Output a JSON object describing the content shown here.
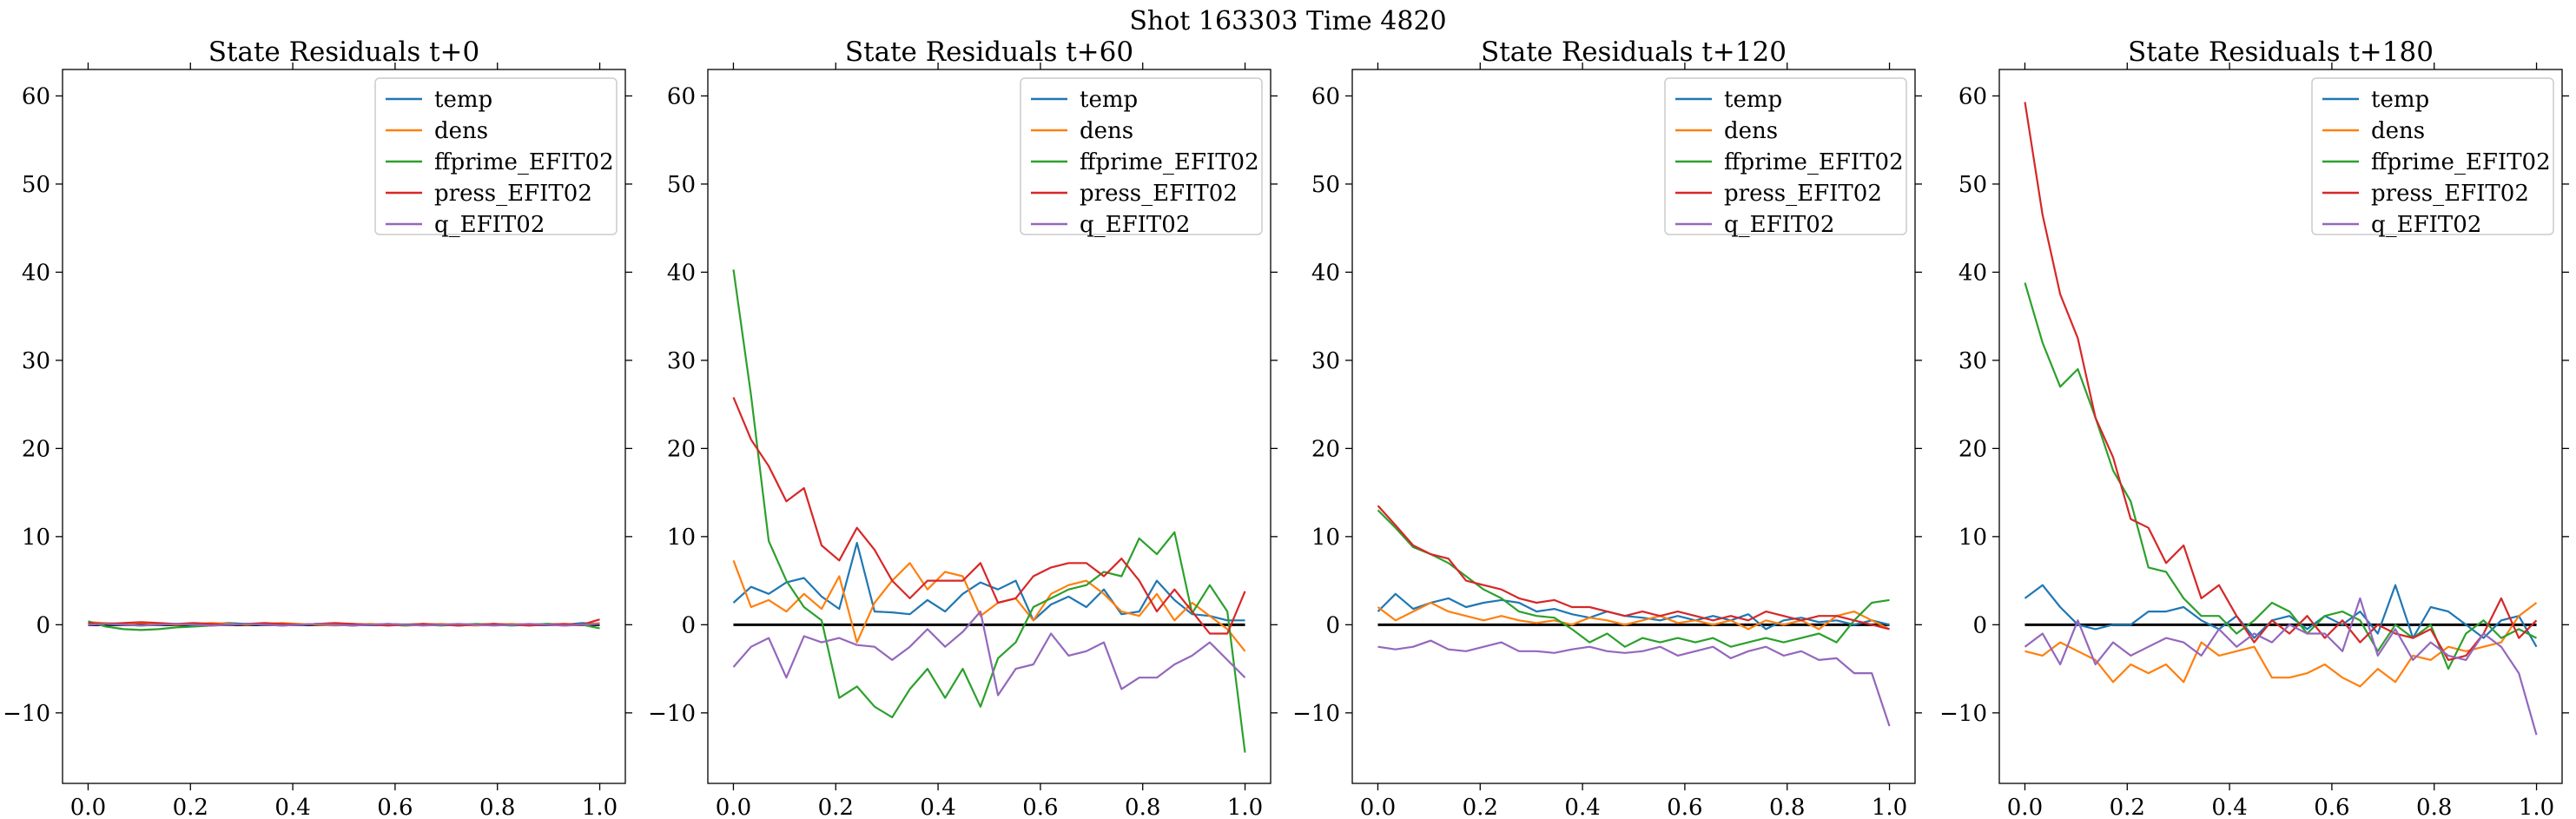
{
  "figure": {
    "suptitle": "Shot 163303   Time 4820"
  },
  "chart_data": [
    {
      "type": "line",
      "title": "State Residuals t+0",
      "xlabel": "",
      "ylabel": "",
      "xlim": [
        -0.05,
        1.05
      ],
      "ylim": [
        -18,
        63
      ],
      "xticks": [
        0.0,
        0.2,
        0.4,
        0.6,
        0.8,
        1.0
      ],
      "yticks": [
        -10,
        0,
        10,
        20,
        30,
        40,
        50,
        60
      ],
      "xtick_labels": [
        "0.0",
        "0.2",
        "0.4",
        "0.6",
        "0.8",
        "1.0"
      ],
      "ytick_labels": [
        "−10",
        "0",
        "10",
        "20",
        "30",
        "40",
        "50",
        "60"
      ],
      "grid": false,
      "legend": "top-right",
      "zero_line": true,
      "x": [
        0.0,
        0.0345,
        0.069,
        0.1034,
        0.1379,
        0.1724,
        0.2069,
        0.2414,
        0.2759,
        0.3103,
        0.3448,
        0.3793,
        0.4138,
        0.4483,
        0.4828,
        0.5172,
        0.5517,
        0.5862,
        0.6207,
        0.6552,
        0.6897,
        0.7241,
        0.7586,
        0.7931,
        0.8276,
        0.8621,
        0.8966,
        0.931,
        0.9655,
        1.0
      ],
      "series": [
        {
          "name": "temp",
          "color": "#1f77b4",
          "values": [
            0.2,
            0.1,
            0.0,
            -0.1,
            0.0,
            0.1,
            0.0,
            0.1,
            0.2,
            0.1,
            0.0,
            -0.1,
            0.0,
            0.1,
            0.0,
            -0.1,
            0.0,
            0.1,
            0.0,
            0.1,
            0.0,
            -0.1,
            0.0,
            0.1,
            0.0,
            0.0,
            0.1,
            0.0,
            0.2,
            0.1
          ]
        },
        {
          "name": "dens",
          "color": "#ff7f0e",
          "values": [
            0.3,
            0.2,
            0.1,
            0.2,
            0.1,
            0.0,
            0.1,
            0.2,
            0.1,
            0.0,
            0.1,
            0.2,
            0.1,
            0.0,
            -0.1,
            0.0,
            0.1,
            0.0,
            -0.1,
            0.0,
            0.1,
            0.0,
            -0.1,
            0.0,
            0.1,
            0.0,
            0.0,
            -0.1,
            0.0,
            0.2
          ]
        },
        {
          "name": "ffprime_EFIT02",
          "color": "#2ca02c",
          "values": [
            0.4,
            -0.2,
            -0.5,
            -0.6,
            -0.5,
            -0.3,
            -0.2,
            -0.1,
            0.0,
            0.1,
            0.0,
            0.1,
            0.0,
            0.1,
            0.0,
            0.1,
            0.0,
            0.0,
            -0.1,
            0.0,
            -0.1,
            0.0,
            0.1,
            0.0,
            -0.1,
            0.0,
            0.1,
            0.0,
            0.0,
            -0.4
          ]
        },
        {
          "name": "press_EFIT02",
          "color": "#d62728",
          "values": [
            0.2,
            0.1,
            0.2,
            0.3,
            0.2,
            0.1,
            0.2,
            0.1,
            0.0,
            0.1,
            0.2,
            0.1,
            0.0,
            0.1,
            0.2,
            0.1,
            0.0,
            -0.1,
            0.0,
            0.1,
            0.0,
            -0.1,
            0.0,
            0.1,
            0.0,
            -0.1,
            0.0,
            0.1,
            0.0,
            0.6
          ]
        },
        {
          "name": "q_EFIT02",
          "color": "#9467bd",
          "values": [
            0.0,
            0.1,
            0.0,
            -0.1,
            0.0,
            0.1,
            0.0,
            -0.1,
            0.0,
            0.1,
            0.0,
            -0.1,
            0.0,
            0.1,
            0.0,
            -0.1,
            0.0,
            0.1,
            0.0,
            -0.1,
            0.0,
            0.1,
            0.0,
            -0.1,
            0.0,
            0.1,
            0.0,
            -0.1,
            0.0,
            0.1
          ]
        }
      ]
    },
    {
      "type": "line",
      "title": "State Residuals t+60",
      "xlabel": "",
      "ylabel": "",
      "xlim": [
        -0.05,
        1.05
      ],
      "ylim": [
        -18,
        63
      ],
      "xticks": [
        0.0,
        0.2,
        0.4,
        0.6,
        0.8,
        1.0
      ],
      "yticks": [
        -10,
        0,
        10,
        20,
        30,
        40,
        50,
        60
      ],
      "xtick_labels": [
        "0.0",
        "0.2",
        "0.4",
        "0.6",
        "0.8",
        "1.0"
      ],
      "ytick_labels": [
        "−10",
        "0",
        "10",
        "20",
        "30",
        "40",
        "50",
        "60"
      ],
      "grid": false,
      "legend": "top-right",
      "zero_line": true,
      "x": [
        0.0,
        0.0345,
        0.069,
        0.1034,
        0.1379,
        0.1724,
        0.2069,
        0.2414,
        0.2759,
        0.3103,
        0.3448,
        0.3793,
        0.4138,
        0.4483,
        0.4828,
        0.5172,
        0.5517,
        0.5862,
        0.6207,
        0.6552,
        0.6897,
        0.7241,
        0.7586,
        0.7931,
        0.8276,
        0.8621,
        0.8966,
        0.931,
        0.9655,
        1.0
      ],
      "series": [
        {
          "name": "temp",
          "color": "#1f77b4",
          "values": [
            2.5,
            4.3,
            3.5,
            4.8,
            5.3,
            3.2,
            1.8,
            9.3,
            1.5,
            1.4,
            1.2,
            2.8,
            1.5,
            3.5,
            4.8,
            4.0,
            5.0,
            0.5,
            2.3,
            3.2,
            2.0,
            4.0,
            1.2,
            1.5,
            5.0,
            2.8,
            1.2,
            1.0,
            0.5,
            0.5
          ]
        },
        {
          "name": "dens",
          "color": "#ff7f0e",
          "values": [
            7.3,
            2.0,
            2.8,
            1.5,
            3.5,
            1.8,
            5.5,
            -2.0,
            2.5,
            5.0,
            7.0,
            4.0,
            6.0,
            5.5,
            1.0,
            2.5,
            3.0,
            0.5,
            3.5,
            4.5,
            5.0,
            3.5,
            1.5,
            1.0,
            3.5,
            0.5,
            2.5,
            1.0,
            -0.5,
            -3.0
          ]
        },
        {
          "name": "ffprime_EFIT02",
          "color": "#2ca02c",
          "values": [
            40.3,
            26.0,
            9.5,
            5.0,
            2.0,
            0.5,
            -8.3,
            -7.0,
            -9.3,
            -10.5,
            -7.3,
            -5.0,
            -8.3,
            -5.0,
            -9.3,
            -3.8,
            -2.0,
            2.0,
            3.0,
            4.0,
            4.5,
            6.0,
            5.5,
            9.8,
            8.0,
            10.5,
            1.3,
            4.5,
            1.5,
            -14.5
          ]
        },
        {
          "name": "press_EFIT02",
          "color": "#d62728",
          "values": [
            25.8,
            21.0,
            18.0,
            14.0,
            15.5,
            9.0,
            7.3,
            11.0,
            8.5,
            5.0,
            3.0,
            5.0,
            5.0,
            5.0,
            7.0,
            2.5,
            3.0,
            5.5,
            6.5,
            7.0,
            7.0,
            5.5,
            7.5,
            5.0,
            1.5,
            4.0,
            1.5,
            -1.0,
            -1.0,
            3.8
          ]
        },
        {
          "name": "q_EFIT02",
          "color": "#9467bd",
          "values": [
            -4.8,
            -2.5,
            -1.5,
            -6.0,
            -1.3,
            -2.0,
            -1.5,
            -2.3,
            -2.5,
            -4.0,
            -2.5,
            -0.5,
            -2.5,
            -0.8,
            1.5,
            -8.0,
            -5.0,
            -4.5,
            -1.0,
            -3.5,
            -3.0,
            -2.0,
            -7.3,
            -6.0,
            -6.0,
            -4.5,
            -3.5,
            -2.0,
            -4.0,
            -6.0
          ]
        }
      ]
    },
    {
      "type": "line",
      "title": "State Residuals t+120",
      "xlabel": "",
      "ylabel": "",
      "xlim": [
        -0.05,
        1.05
      ],
      "ylim": [
        -18,
        63
      ],
      "xticks": [
        0.0,
        0.2,
        0.4,
        0.6,
        0.8,
        1.0
      ],
      "yticks": [
        -10,
        0,
        10,
        20,
        30,
        40,
        50,
        60
      ],
      "xtick_labels": [
        "0.0",
        "0.2",
        "0.4",
        "0.6",
        "0.8",
        "1.0"
      ],
      "ytick_labels": [
        "−10",
        "0",
        "10",
        "20",
        "30",
        "40",
        "50",
        "60"
      ],
      "grid": false,
      "legend": "top-right",
      "zero_line": true,
      "x": [
        0.0,
        0.0345,
        0.069,
        0.1034,
        0.1379,
        0.1724,
        0.2069,
        0.2414,
        0.2759,
        0.3103,
        0.3448,
        0.3793,
        0.4138,
        0.4483,
        0.4828,
        0.5172,
        0.5517,
        0.5862,
        0.6207,
        0.6552,
        0.6897,
        0.7241,
        0.7586,
        0.7931,
        0.8276,
        0.8621,
        0.8966,
        0.931,
        0.9655,
        1.0
      ],
      "series": [
        {
          "name": "temp",
          "color": "#1f77b4",
          "values": [
            1.5,
            3.5,
            1.8,
            2.5,
            3.0,
            2.0,
            2.5,
            2.8,
            2.5,
            1.5,
            1.8,
            1.2,
            0.8,
            1.5,
            1.0,
            0.8,
            0.5,
            1.0,
            0.5,
            1.0,
            0.5,
            1.2,
            -0.5,
            0.5,
            0.8,
            0.3,
            0.5,
            0.0,
            0.5,
            0.0
          ]
        },
        {
          "name": "dens",
          "color": "#ff7f0e",
          "values": [
            2.0,
            0.5,
            1.5,
            2.5,
            1.5,
            1.0,
            0.5,
            1.0,
            0.5,
            0.2,
            0.5,
            0.0,
            0.8,
            0.5,
            0.0,
            0.5,
            1.0,
            0.2,
            0.5,
            0.0,
            0.5,
            -0.5,
            0.5,
            0.0,
            0.5,
            -0.5,
            1.0,
            1.5,
            0.5,
            -0.5
          ]
        },
        {
          "name": "ffprime_EFIT02",
          "color": "#2ca02c",
          "values": [
            13.0,
            11.0,
            8.8,
            8.0,
            7.0,
            5.5,
            4.0,
            3.0,
            1.5,
            1.0,
            0.8,
            -0.5,
            -2.0,
            -1.0,
            -2.5,
            -1.5,
            -2.0,
            -1.5,
            -2.0,
            -1.5,
            -2.5,
            -2.0,
            -1.5,
            -2.0,
            -1.5,
            -1.0,
            -2.0,
            0.5,
            2.5,
            2.8
          ]
        },
        {
          "name": "press_EFIT02",
          "color": "#d62728",
          "values": [
            13.5,
            11.3,
            9.0,
            8.0,
            7.5,
            5.0,
            4.5,
            4.0,
            3.0,
            2.5,
            2.8,
            2.0,
            2.0,
            1.5,
            1.0,
            1.5,
            1.0,
            1.5,
            1.0,
            0.5,
            1.0,
            0.5,
            1.5,
            1.0,
            0.5,
            1.0,
            1.0,
            0.5,
            0.0,
            -0.5
          ]
        },
        {
          "name": "q_EFIT02",
          "color": "#9467bd",
          "values": [
            -2.5,
            -2.8,
            -2.5,
            -1.8,
            -2.8,
            -3.0,
            -2.5,
            -2.0,
            -3.0,
            -3.0,
            -3.2,
            -2.8,
            -2.5,
            -3.0,
            -3.2,
            -3.0,
            -2.5,
            -3.5,
            -3.0,
            -2.5,
            -3.8,
            -3.0,
            -2.5,
            -3.5,
            -3.0,
            -4.0,
            -3.8,
            -5.5,
            -5.5,
            -11.5
          ]
        }
      ]
    },
    {
      "type": "line",
      "title": "State Residuals t+180",
      "xlabel": "",
      "ylabel": "",
      "xlim": [
        -0.05,
        1.05
      ],
      "ylim": [
        -18,
        63
      ],
      "xticks": [
        0.0,
        0.2,
        0.4,
        0.6,
        0.8,
        1.0
      ],
      "yticks": [
        -10,
        0,
        10,
        20,
        30,
        40,
        50,
        60
      ],
      "xtick_labels": [
        "0.0",
        "0.2",
        "0.4",
        "0.6",
        "0.8",
        "1.0"
      ],
      "ytick_labels": [
        "−10",
        "0",
        "10",
        "20",
        "30",
        "40",
        "50",
        "60"
      ],
      "grid": false,
      "legend": "top-right",
      "zero_line": true,
      "x": [
        0.0,
        0.0345,
        0.069,
        0.1034,
        0.1379,
        0.1724,
        0.2069,
        0.2414,
        0.2759,
        0.3103,
        0.3448,
        0.3793,
        0.4138,
        0.4483,
        0.4828,
        0.5172,
        0.5517,
        0.5862,
        0.6207,
        0.6552,
        0.6897,
        0.7241,
        0.7586,
        0.7931,
        0.8276,
        0.8621,
        0.8966,
        0.931,
        0.9655,
        1.0
      ],
      "series": [
        {
          "name": "temp",
          "color": "#1f77b4",
          "values": [
            3.0,
            4.5,
            2.0,
            0.0,
            -0.5,
            0.0,
            0.0,
            1.5,
            1.5,
            2.0,
            0.5,
            -0.5,
            1.0,
            -1.5,
            0.5,
            1.0,
            -0.5,
            1.0,
            0.0,
            1.5,
            -1.0,
            4.5,
            -1.5,
            2.0,
            1.5,
            0.0,
            -1.5,
            0.5,
            1.0,
            -2.5
          ]
        },
        {
          "name": "dens",
          "color": "#ff7f0e",
          "values": [
            -3.0,
            -3.5,
            -2.0,
            -3.0,
            -4.0,
            -6.5,
            -4.5,
            -5.5,
            -4.5,
            -6.5,
            -2.0,
            -3.5,
            -3.0,
            -2.5,
            -6.0,
            -6.0,
            -5.5,
            -4.5,
            -6.0,
            -7.0,
            -5.0,
            -6.5,
            -3.5,
            -4.0,
            -2.5,
            -3.0,
            -2.5,
            -2.0,
            1.0,
            2.5
          ]
        },
        {
          "name": "ffprime_EFIT02",
          "color": "#2ca02c",
          "values": [
            38.8,
            32.0,
            27.0,
            29.0,
            23.5,
            17.5,
            14.0,
            6.5,
            6.0,
            3.0,
            1.0,
            1.0,
            -1.0,
            0.5,
            2.5,
            1.5,
            -1.0,
            1.0,
            1.5,
            0.5,
            -3.0,
            0.0,
            -1.5,
            0.0,
            -5.0,
            -1.0,
            0.5,
            -1.5,
            -0.5,
            -1.5
          ]
        },
        {
          "name": "press_EFIT02",
          "color": "#d62728",
          "values": [
            59.3,
            46.5,
            37.5,
            32.5,
            23.5,
            19.0,
            12.0,
            11.0,
            7.0,
            9.0,
            3.0,
            4.5,
            1.0,
            -2.0,
            0.5,
            -1.0,
            1.0,
            -1.5,
            0.5,
            -2.0,
            0.0,
            -1.0,
            -1.5,
            -0.5,
            -4.0,
            -3.5,
            -1.0,
            3.0,
            -1.5,
            0.5
          ]
        },
        {
          "name": "q_EFIT02",
          "color": "#9467bd",
          "values": [
            -2.5,
            -1.0,
            -4.5,
            0.5,
            -4.5,
            -2.0,
            -3.5,
            -2.5,
            -1.5,
            -2.0,
            -3.5,
            -0.5,
            -2.5,
            -1.0,
            -2.0,
            0.0,
            -1.0,
            -1.0,
            -3.0,
            3.0,
            -3.5,
            -0.5,
            -4.0,
            -2.0,
            -3.5,
            -4.0,
            -1.0,
            -2.5,
            -5.5,
            -12.5
          ]
        }
      ]
    }
  ]
}
